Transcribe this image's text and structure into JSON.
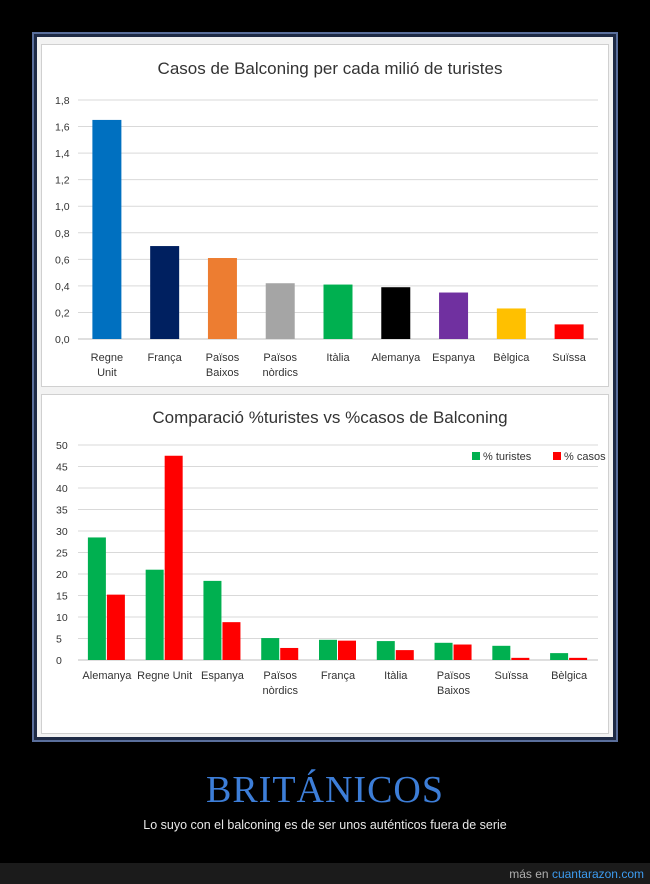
{
  "chart_data": [
    {
      "type": "bar",
      "title": "Casos de Balconing per cada milió de turistes",
      "categories": [
        [
          "Regne",
          "Unit"
        ],
        [
          "França"
        ],
        [
          "Països",
          "Baixos"
        ],
        [
          "Països",
          "nòrdics"
        ],
        [
          "Itàlia"
        ],
        [
          "Alemanya"
        ],
        [
          "Espanya"
        ],
        [
          "Bèlgica"
        ],
        [
          "Suïssa"
        ]
      ],
      "values": [
        1.65,
        0.7,
        0.61,
        0.42,
        0.41,
        0.39,
        0.35,
        0.23,
        0.11
      ],
      "colors": [
        "#0070c0",
        "#002060",
        "#ed7d31",
        "#a5a5a5",
        "#00b050",
        "#000000",
        "#7030a0",
        "#ffc000",
        "#ff0000"
      ],
      "ylim": [
        0,
        1.8
      ],
      "yticks": [
        "0,0",
        "0,2",
        "0,4",
        "0,6",
        "0,8",
        "1,0",
        "1,2",
        "1,4",
        "1,6",
        "1,8"
      ],
      "grid": true,
      "legend": "none"
    },
    {
      "type": "bar",
      "title": "Comparació %turistes vs %casos de Balconing",
      "categories": [
        [
          "Alemanya"
        ],
        [
          "Regne Unit"
        ],
        [
          "Espanya"
        ],
        [
          "Països",
          "nòrdics"
        ],
        [
          "França"
        ],
        [
          "Itàlia"
        ],
        [
          "Països",
          "Baixos"
        ],
        [
          "Suïssa"
        ],
        [
          "Bèlgica"
        ]
      ],
      "series": [
        {
          "name": "% turistes",
          "color": "#00b050",
          "values": [
            28.5,
            21.0,
            18.4,
            5.1,
            4.7,
            4.4,
            4.0,
            3.3,
            1.6
          ]
        },
        {
          "name": "% casos",
          "color": "#ff0000",
          "values": [
            15.2,
            47.5,
            8.8,
            2.8,
            4.5,
            2.3,
            3.6,
            0.5,
            0.5
          ]
        }
      ],
      "ylim": [
        0,
        50
      ],
      "yticks": [
        "0",
        "5",
        "10",
        "15",
        "20",
        "25",
        "30",
        "35",
        "40",
        "45",
        "50"
      ],
      "grid": true,
      "legend": "top-right"
    }
  ],
  "caption": {
    "title": "BRITÁNICOS",
    "subtitle": "Lo suyo con el balconing es de ser unos auténticos fuera de serie"
  },
  "footer": {
    "prefix": "más en",
    "link": "cuantarazon.com"
  }
}
